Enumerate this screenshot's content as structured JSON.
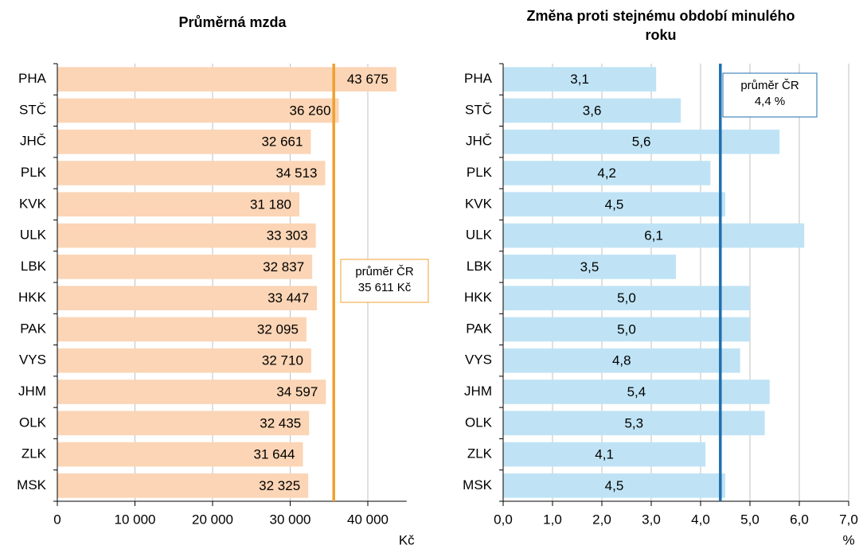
{
  "chart_data": [
    {
      "type": "bar",
      "title": "Průměrná mzda",
      "unit": "Kč",
      "color": "#fbd5b5",
      "categories": [
        "PHA",
        "STČ",
        "JHČ",
        "PLK",
        "KVK",
        "ULK",
        "LBK",
        "HKK",
        "PAK",
        "VYS",
        "JHM",
        "OLK",
        "ZLK",
        "MSK"
      ],
      "values": [
        43675,
        36260,
        32661,
        34513,
        31180,
        33303,
        32837,
        33447,
        32095,
        32710,
        34597,
        32435,
        31644,
        32325
      ],
      "value_labels": [
        "43 675",
        "36 260",
        "32 661",
        "34 513",
        "31 180",
        "33 303",
        "32 837",
        "33 447",
        "32 095",
        "32 710",
        "34 597",
        "32 435",
        "31 644",
        "32 325"
      ],
      "xlim": [
        0,
        45000
      ],
      "xticks": [
        0,
        {
          "value": 10000,
          "label": "10 000"
        },
        {
          "value": 20000,
          "label": "20 000"
        },
        {
          "value": 30000,
          "label": "30 000"
        },
        {
          "value": 40000,
          "label": "40 000"
        }
      ],
      "grid": true,
      "mean": {
        "value": 35611,
        "color": "#f0a030",
        "label": [
          "průměr ČR",
          "35 611 Kč"
        ]
      }
    },
    {
      "type": "bar",
      "title": "Změna proti stejnému období minulého roku",
      "unit": "%",
      "color": "#bfe3f5",
      "categories": [
        "PHA",
        "STČ",
        "JHČ",
        "PLK",
        "KVK",
        "ULK",
        "LBK",
        "HKK",
        "PAK",
        "VYS",
        "JHM",
        "OLK",
        "ZLK",
        "MSK"
      ],
      "values": [
        3.1,
        3.6,
        5.6,
        4.2,
        4.5,
        6.1,
        3.5,
        5.0,
        5.0,
        4.8,
        5.4,
        5.3,
        4.1,
        4.5
      ],
      "value_labels": [
        "3,1",
        "3,6",
        "5,6",
        "4,2",
        "4,5",
        "6,1",
        "3,5",
        "5,0",
        "5,0",
        "4,8",
        "5,4",
        "5,3",
        "4,1",
        "4,5"
      ],
      "xlim": [
        0,
        7
      ],
      "xticks": [
        {
          "value": 0,
          "label": "0,0"
        },
        {
          "value": 1,
          "label": "1,0"
        },
        {
          "value": 2,
          "label": "2,0"
        },
        {
          "value": 3,
          "label": "3,0"
        },
        {
          "value": 4,
          "label": "4,0"
        },
        {
          "value": 5,
          "label": "5,0"
        },
        {
          "value": 6,
          "label": "6,0"
        },
        {
          "value": 7,
          "label": "7,0"
        }
      ],
      "grid": true,
      "mean": {
        "value": 4.4,
        "color": "#1f6fad",
        "label": [
          "průměr ČR",
          "4,4 %"
        ]
      }
    }
  ]
}
